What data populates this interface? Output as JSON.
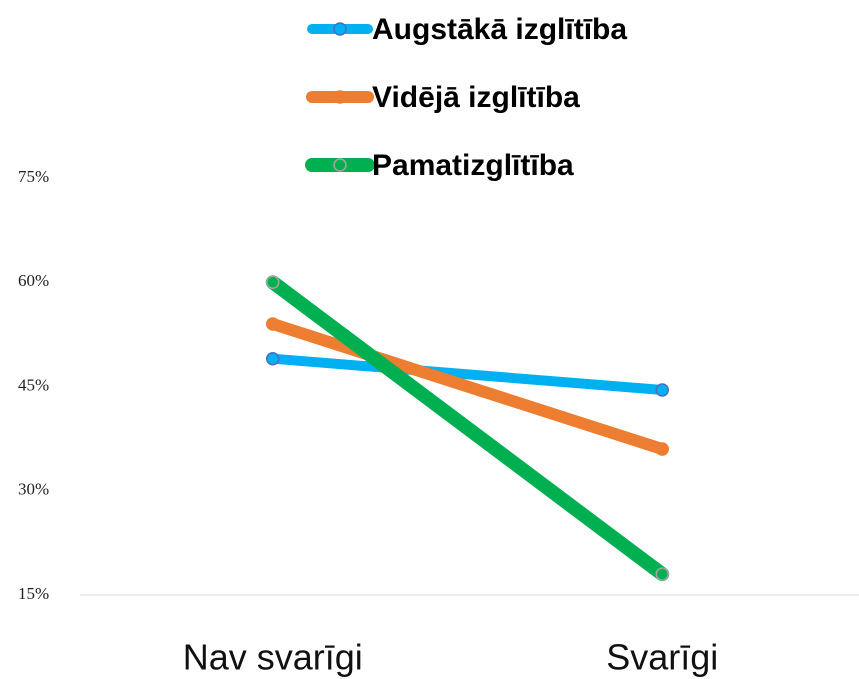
{
  "chart_data": {
    "type": "line",
    "categories": [
      "Nav svarīgi",
      "Svarīgi"
    ],
    "series": [
      {
        "name": "Augstākā izglītība",
        "color": "#00b0f0",
        "values": [
          49,
          44.5
        ]
      },
      {
        "name": "Vidējā izglītība",
        "color": "#ed7d31",
        "values": [
          54,
          36
        ]
      },
      {
        "name": "Pamatizglītība",
        "color": "#00b050",
        "values": [
          60,
          18
        ]
      }
    ],
    "ylim": [
      15,
      75
    ],
    "yticks": [
      {
        "value": 15,
        "label": "15%"
      },
      {
        "value": 30,
        "label": "30%"
      },
      {
        "value": 45,
        "label": "45%"
      },
      {
        "value": 60,
        "label": "60%"
      },
      {
        "value": 75,
        "label": "75%"
      }
    ],
    "legend": "top"
  }
}
